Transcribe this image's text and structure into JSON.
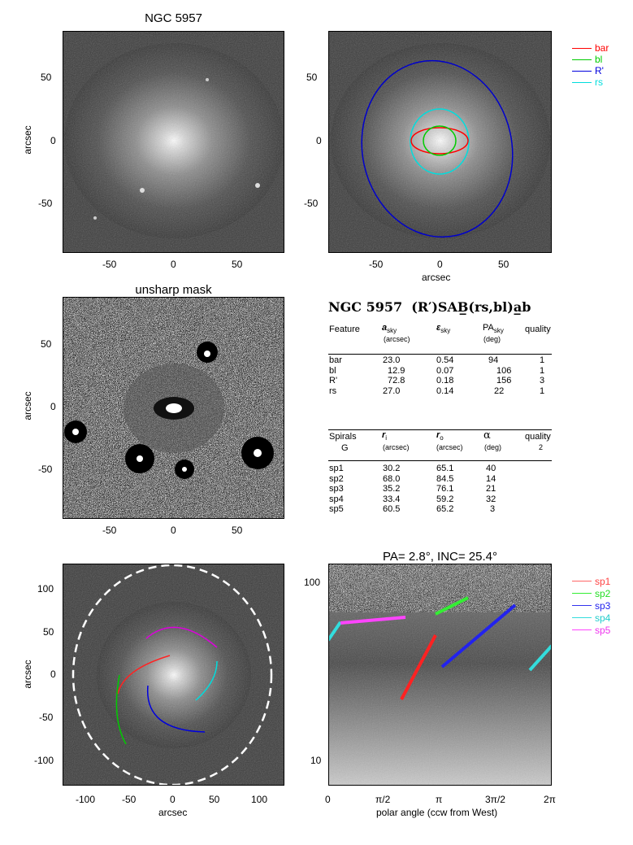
{
  "panels": {
    "image": {
      "title": "NGC 5957",
      "ylabel": "arcsec",
      "xticks": [
        "-50",
        "0",
        "50"
      ],
      "yticks": [
        "50",
        "0",
        "-50"
      ]
    },
    "ellipses": {
      "xlabel": "arcsec",
      "xticks": [
        "-50",
        "0",
        "50"
      ],
      "yticks": [
        "50",
        "0",
        "-50"
      ],
      "legend": [
        {
          "label": "bar",
          "color": "#ff0000"
        },
        {
          "label": "bl",
          "color": "#00cc00"
        },
        {
          "label": "R'",
          "color": "#0000dd"
        },
        {
          "label": "rs",
          "color": "#00dddd"
        }
      ]
    },
    "unsharp": {
      "title": "unsharp mask",
      "ylabel": "arcsec",
      "xticks": [
        "-50",
        "0",
        "50"
      ],
      "yticks": [
        "50",
        "0",
        "-50"
      ]
    },
    "spirals": {
      "xlabel": "arcsec",
      "ylabel": "arcsec",
      "xticks": [
        "-100",
        "-50",
        "0",
        "50",
        "100"
      ],
      "yticks": [
        "100",
        "50",
        "0",
        "-50",
        "-100"
      ]
    },
    "polar": {
      "title": "PA=   2.8°, INC=  25.4°",
      "xlabel": "polar angle (ccw from West)",
      "xticks": [
        "0",
        "π/2",
        "π",
        "3π/2",
        "2π"
      ],
      "yticks": [
        "100",
        "10"
      ],
      "legend": [
        {
          "label": "sp1",
          "color": "#ff6666"
        },
        {
          "label": "sp2",
          "color": "#33ee33"
        },
        {
          "label": "sp3",
          "color": "#3333ee"
        },
        {
          "label": "sp4",
          "color": "#33dddd"
        },
        {
          "label": "sp5",
          "color": "#ff44ff"
        }
      ]
    }
  },
  "classification": {
    "galaxy": "NGC 5957",
    "type": "(R′)SAB̲(rs,bl)a̲b"
  },
  "features_table": {
    "headers": {
      "feature": "Feature",
      "a": "a",
      "a_sub": "sky",
      "a_unit": "(arcsec)",
      "e": "ε",
      "e_sub": "sky",
      "pa": "PA",
      "pa_sub": "sky",
      "pa_unit": "(deg)",
      "quality": "quality"
    },
    "rows": [
      {
        "feature": "bar",
        "a": "23.0",
        "e": "0.54",
        "pa": "94",
        "q": "1"
      },
      {
        "feature": "bl",
        "a": "12.9",
        "e": "0.07",
        "pa": "106",
        "q": "1"
      },
      {
        "feature": "R'",
        "a": "72.8",
        "e": "0.18",
        "pa": "156",
        "q": "3"
      },
      {
        "feature": "rs",
        "a": "27.0",
        "e": "0.14",
        "pa": "22",
        "q": "1"
      }
    ]
  },
  "spirals_table": {
    "headers": {
      "spirals": "Spirals",
      "group": "G",
      "ri": "r",
      "ri_sub": "i",
      "ri_unit": "(arcsec)",
      "ro": "r",
      "ro_sub": "o",
      "ro_unit": "(arcsec)",
      "alpha": "α",
      "alpha_unit": "(deg)",
      "quality": "quality",
      "quality_val": "2"
    },
    "rows": [
      {
        "name": "sp1",
        "ri": "30.2",
        "ro": "65.1",
        "alpha": "40"
      },
      {
        "name": "sp2",
        "ri": "68.0",
        "ro": "84.5",
        "alpha": "14"
      },
      {
        "name": "sp3",
        "ri": "35.2",
        "ro": "76.1",
        "alpha": "21"
      },
      {
        "name": "sp4",
        "ri": "33.4",
        "ro": "59.2",
        "alpha": "32"
      },
      {
        "name": "sp5",
        "ri": "60.5",
        "ro": "65.2",
        "alpha": "3"
      }
    ]
  }
}
